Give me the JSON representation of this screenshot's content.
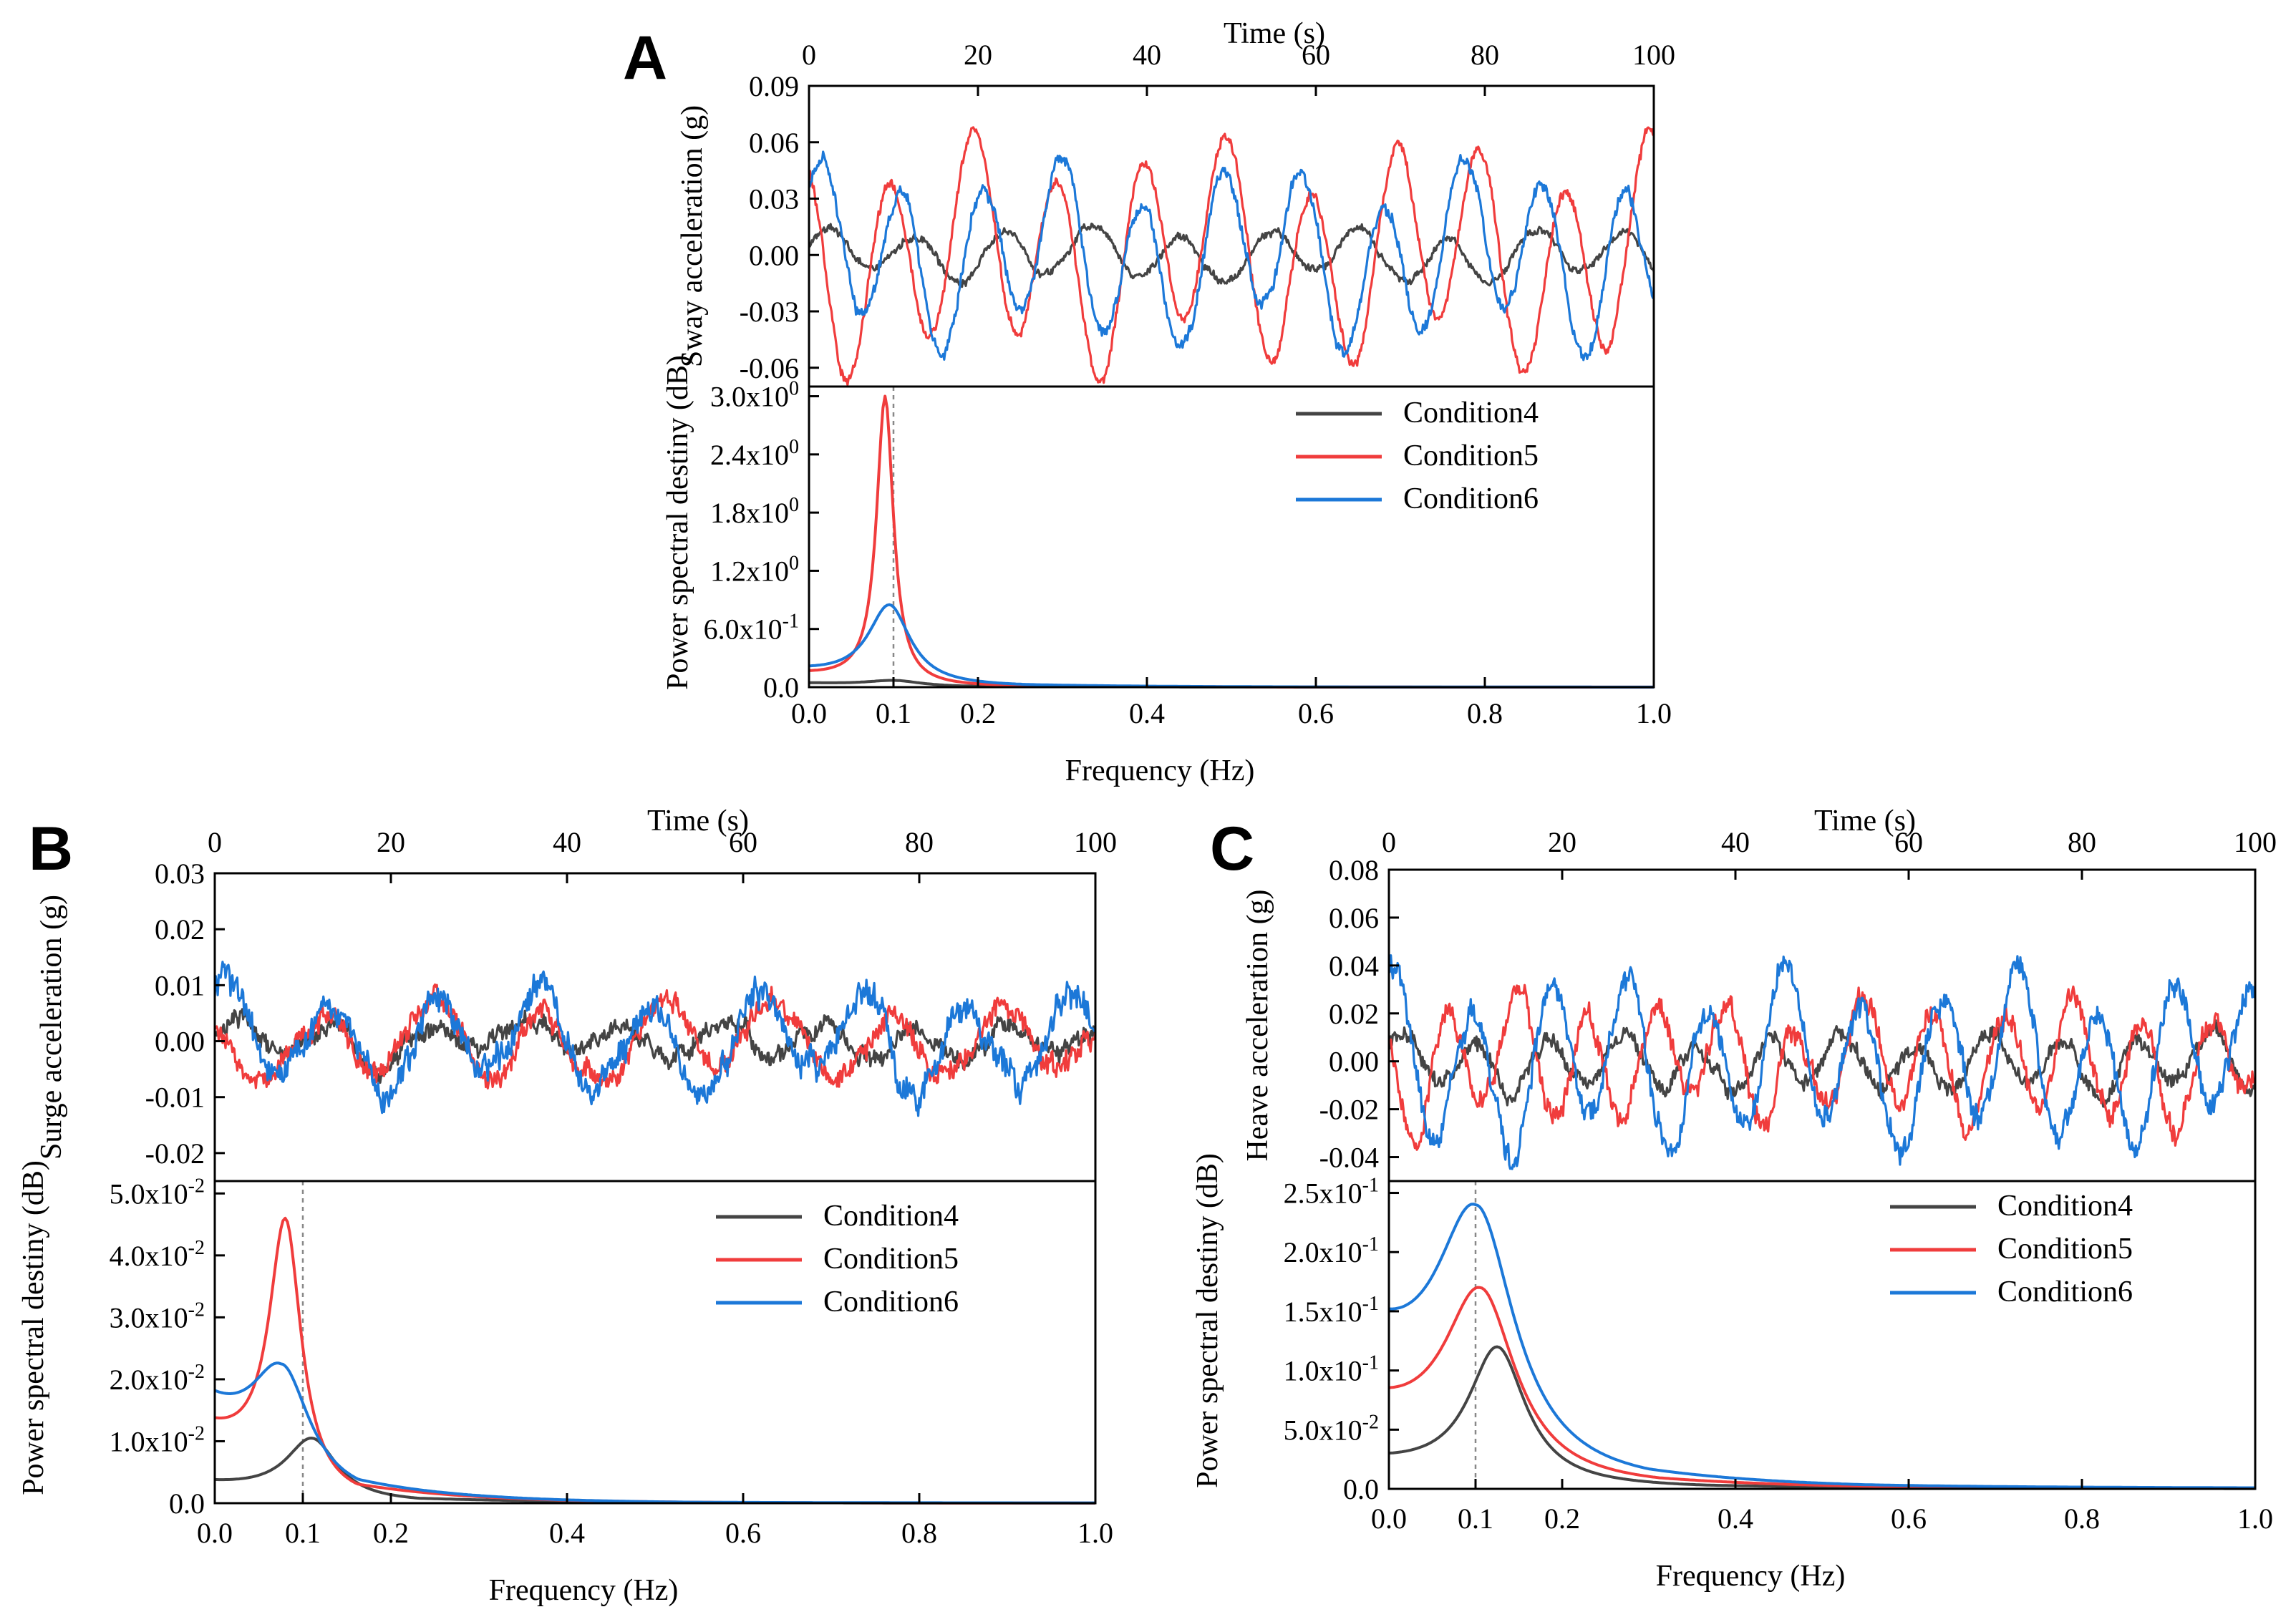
{
  "colors": {
    "Condition4": "#444444",
    "Condition5": "#f03c3c",
    "Condition6": "#1c78d8"
  },
  "legend": [
    "Condition4",
    "Condition5",
    "Condition6"
  ],
  "chart_data": [
    {
      "panel": "A",
      "top": {
        "type": "line",
        "xlabel": "Time (s)",
        "ylabel": "Sway acceleration (g)",
        "xlim": [
          0,
          100
        ],
        "xticks": [
          0,
          20,
          40,
          60,
          80,
          100
        ],
        "ylim": [
          -0.07,
          0.09
        ],
        "yticks": [
          -0.06,
          -0.03,
          0.0,
          0.03,
          0.06,
          0.09
        ],
        "ytick_labels": [
          "-0.06",
          "-0.03",
          "0.00",
          "0.03",
          "0.06",
          "0.09"
        ],
        "series": [
          {
            "name": "Condition4",
            "period": 10.5,
            "amplitude": 0.012,
            "noise": 0.003,
            "phase": 0.3
          },
          {
            "name": "Condition5",
            "period": 10.0,
            "amplitude": 0.05,
            "noise": 0.004,
            "phase": 1.9
          },
          {
            "name": "Condition6",
            "period": 9.5,
            "amplitude": 0.04,
            "noise": 0.005,
            "phase": 0.6
          }
        ]
      },
      "bottom": {
        "type": "line",
        "xlabel": "Frequency (Hz)",
        "ylabel": "Power spectral destiny (dB)",
        "xlim": [
          0,
          1
        ],
        "xticks": [
          0.0,
          0.1,
          0.2,
          0.4,
          0.6,
          0.8,
          1.0
        ],
        "xtick_labels": [
          "0.0",
          "0.1",
          "0.2",
          "0.4",
          "0.6",
          "0.8",
          "1.0"
        ],
        "ylim": [
          0,
          3.1
        ],
        "yticks": [
          0.0,
          0.6,
          1.2,
          1.8,
          2.4,
          3.0
        ],
        "ytick_labels": [
          "0.0",
          "6.0x10-1",
          "1.2x100",
          "1.8x100",
          "2.4x100",
          "3.0x100"
        ],
        "reference_x": 0.1,
        "series": [
          {
            "name": "Condition4",
            "peak_x": 0.1,
            "peak_y": 0.07,
            "base_y": 0.04,
            "width": 0.04
          },
          {
            "name": "Condition5",
            "peak_x": 0.09,
            "peak_y": 3.0,
            "base_y": 0.12,
            "width": 0.012
          },
          {
            "name": "Condition6",
            "peak_x": 0.095,
            "peak_y": 0.85,
            "base_y": 0.15,
            "width": 0.03
          }
        ]
      }
    },
    {
      "panel": "B",
      "top": {
        "type": "line",
        "xlabel": "Time (s)",
        "ylabel": "Surge acceleration (g)",
        "xlim": [
          0,
          100
        ],
        "xticks": [
          0,
          20,
          40,
          60,
          80,
          100
        ],
        "ylim": [
          -0.025,
          0.03
        ],
        "yticks": [
          -0.02,
          -0.01,
          0.0,
          0.01,
          0.02,
          0.03
        ],
        "ytick_labels": [
          "-0.02",
          "-0.01",
          "0.00",
          "0.01",
          "0.02",
          "0.03"
        ],
        "series": [
          {
            "name": "Condition4",
            "period": 11.0,
            "amplitude": 0.003,
            "noise": 0.0025,
            "phase": 0.2
          },
          {
            "name": "Condition5",
            "period": 13.0,
            "amplitude": 0.006,
            "noise": 0.003,
            "phase": 2.1
          },
          {
            "name": "Condition6",
            "period": 12.0,
            "amplitude": 0.008,
            "noise": 0.004,
            "phase": 0.8
          }
        ]
      },
      "bottom": {
        "type": "line",
        "xlabel": "Frequency (Hz)",
        "ylabel": "Power spectral destiny (dB)",
        "xlim": [
          0,
          1
        ],
        "xticks": [
          0.0,
          0.1,
          0.2,
          0.4,
          0.6,
          0.8,
          1.0
        ],
        "xtick_labels": [
          "0.0",
          "0.1",
          "0.2",
          "0.4",
          "0.6",
          "0.8",
          "1.0"
        ],
        "ylim": [
          0,
          0.052
        ],
        "yticks": [
          0.0,
          0.01,
          0.02,
          0.03,
          0.04,
          0.05
        ],
        "ytick_labels": [
          "0.0",
          "1.0x10-2",
          "2.0x10-2",
          "3.0x10-2",
          "4.0x10-2",
          "5.0x10-2"
        ],
        "reference_x": 0.1,
        "series": [
          {
            "name": "Condition4",
            "peak_x": 0.11,
            "peak_y": 0.0105,
            "base_y": 0.003,
            "width": 0.035
          },
          {
            "name": "Condition5",
            "peak_x": 0.08,
            "peak_y": 0.046,
            "base_y": 0.011,
            "width": 0.022
          },
          {
            "name": "Condition6",
            "peak_x": 0.075,
            "peak_y": 0.0225,
            "base_y": 0.015,
            "width": 0.04
          }
        ]
      }
    },
    {
      "panel": "C",
      "top": {
        "type": "line",
        "xlabel": "Time (s)",
        "ylabel": "Heave acceleration (g)",
        "xlim": [
          0,
          100
        ],
        "xticks": [
          0,
          20,
          40,
          60,
          80,
          100
        ],
        "ylim": [
          -0.05,
          0.08
        ],
        "yticks": [
          -0.04,
          -0.02,
          0.0,
          0.02,
          0.04,
          0.06,
          0.08
        ],
        "ytick_labels": [
          "-0.04",
          "-0.02",
          "0.00",
          "0.02",
          "0.04",
          "0.06",
          "0.08"
        ],
        "series": [
          {
            "name": "Condition4",
            "period": 8.5,
            "amplitude": 0.01,
            "noise": 0.005,
            "phase": 0.5
          },
          {
            "name": "Condition5",
            "period": 8.0,
            "amplitude": 0.022,
            "noise": 0.007,
            "phase": 2.4
          },
          {
            "name": "Condition6",
            "period": 9.0,
            "amplitude": 0.03,
            "noise": 0.008,
            "phase": 1.1
          }
        ]
      },
      "bottom": {
        "type": "line",
        "xlabel": "Frequency (Hz)",
        "ylabel": "Power spectral destiny (dB)",
        "xlim": [
          0,
          1
        ],
        "xticks": [
          0.0,
          0.1,
          0.2,
          0.4,
          0.6,
          0.8,
          1.0
        ],
        "xtick_labels": [
          "0.0",
          "0.1",
          "0.2",
          "0.4",
          "0.6",
          "0.8",
          "1.0"
        ],
        "ylim": [
          0,
          0.26
        ],
        "yticks": [
          0.0,
          0.05,
          0.1,
          0.15,
          0.2,
          0.25
        ],
        "ytick_labels": [
          "0.0",
          "5.0x10-2",
          "1.0x10-1",
          "1.5x10-1",
          "2.0x10-1",
          "2.5x10-1"
        ],
        "reference_x": 0.1,
        "series": [
          {
            "name": "Condition4",
            "peak_x": 0.125,
            "peak_y": 0.12,
            "base_y": 0.02,
            "width": 0.04
          },
          {
            "name": "Condition5",
            "peak_x": 0.105,
            "peak_y": 0.17,
            "base_y": 0.06,
            "width": 0.05
          },
          {
            "name": "Condition6",
            "peak_x": 0.1,
            "peak_y": 0.24,
            "base_y": 0.11,
            "width": 0.055
          }
        ]
      }
    }
  ]
}
